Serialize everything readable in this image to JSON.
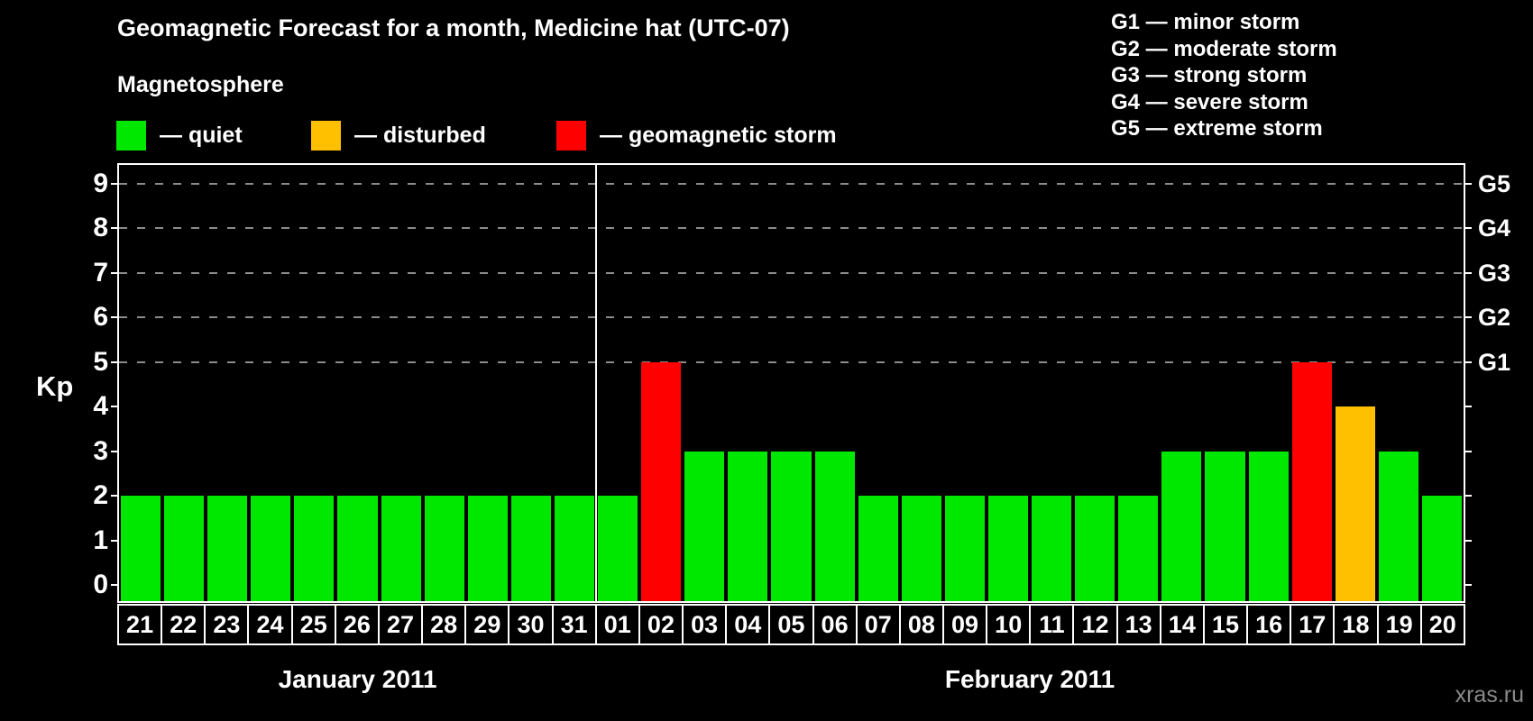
{
  "title": "Geomagnetic Forecast for a month, Medicine hat (UTC-07)",
  "magnetosphere_label": "Magnetosphere",
  "legend": {
    "items": [
      {
        "label": "— quiet",
        "status": "quiet",
        "color": "#00e800"
      },
      {
        "label": "— disturbed",
        "status": "disturbed",
        "color": "#ffc000"
      },
      {
        "label": "— geomagnetic storm",
        "status": "storm",
        "color": "#ff0000"
      }
    ]
  },
  "g_legend": [
    "G1 — minor storm",
    "G2 — moderate storm",
    "G3 — strong storm",
    "G4 — severe storm",
    "G5 — extreme storm"
  ],
  "watermark": "xras.ru",
  "chart_data": {
    "type": "bar",
    "ylabel": "Kp",
    "ylim": [
      0,
      9.5
    ],
    "yticks": [
      0,
      1,
      2,
      3,
      4,
      5,
      6,
      7,
      8,
      9
    ],
    "grid_kp_levels": [
      5,
      6,
      7,
      8,
      9
    ],
    "right_axis_labels": [
      {
        "kp": 5,
        "label": "G1"
      },
      {
        "kp": 6,
        "label": "G2"
      },
      {
        "kp": 7,
        "label": "G3"
      },
      {
        "kp": 8,
        "label": "G4"
      },
      {
        "kp": 9,
        "label": "G5"
      }
    ],
    "categories": [
      "21",
      "22",
      "23",
      "24",
      "25",
      "26",
      "27",
      "28",
      "29",
      "30",
      "31",
      "01",
      "02",
      "03",
      "04",
      "05",
      "06",
      "07",
      "08",
      "09",
      "10",
      "11",
      "12",
      "13",
      "14",
      "15",
      "16",
      "17",
      "18",
      "19",
      "20"
    ],
    "values": [
      2,
      2,
      2,
      2,
      2,
      2,
      2,
      2,
      2,
      2,
      2,
      2,
      5,
      3,
      3,
      3,
      3,
      2,
      2,
      2,
      2,
      2,
      2,
      2,
      3,
      3,
      3,
      5,
      4,
      3,
      2
    ],
    "statuses": [
      "quiet",
      "quiet",
      "quiet",
      "quiet",
      "quiet",
      "quiet",
      "quiet",
      "quiet",
      "quiet",
      "quiet",
      "quiet",
      "quiet",
      "storm",
      "quiet",
      "quiet",
      "quiet",
      "quiet",
      "quiet",
      "quiet",
      "quiet",
      "quiet",
      "quiet",
      "quiet",
      "quiet",
      "quiet",
      "quiet",
      "quiet",
      "storm",
      "disturbed",
      "quiet",
      "quiet"
    ],
    "months": [
      {
        "label": "January 2011",
        "days": 11
      },
      {
        "label": "February 2011",
        "days": 20
      }
    ],
    "status_colors": {
      "quiet": "#00e800",
      "disturbed": "#ffc000",
      "storm": "#ff0000"
    },
    "colors": {
      "grid": "#8c8c8c",
      "axis": "#ffffff",
      "background": "#000000",
      "text": "#ffffff"
    }
  }
}
